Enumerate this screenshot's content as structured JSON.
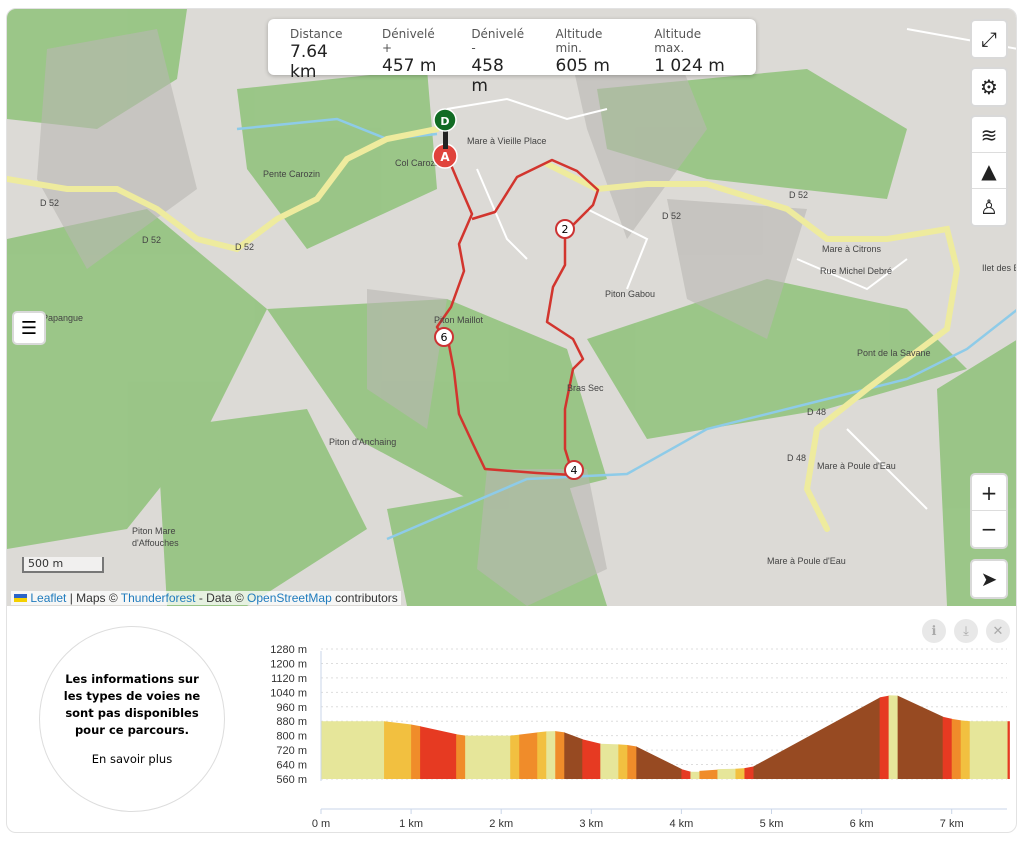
{
  "stats": [
    {
      "label": "Distance",
      "value": "7.64 km"
    },
    {
      "label": "Dénivelé +",
      "value": "457 m"
    },
    {
      "label": "Dénivelé -",
      "value": "458 m"
    },
    {
      "label": "Altitude min.",
      "value": "605 m"
    },
    {
      "label": "Altitude max.",
      "value": "1 024 m"
    }
  ],
  "map": {
    "labels": [
      "Mare à Vieille Place",
      "Col Carozin",
      "Pente Carozin",
      "Piton Maillot",
      "Piton Gabou",
      "Bras Sec",
      "Piton d'Anchaing",
      "Papangue",
      "Mare à Citrons",
      "Rue Michel Debré",
      "Pont de la Savane",
      "Ilet des Bar",
      "Mare à Poule d'Eau",
      "Mare à Poule d'Eau",
      "Piton Mare",
      "d'Affouches",
      "D 52",
      "D 52",
      "D 52",
      "D 52",
      "D 52",
      "D 48",
      "D 48"
    ],
    "markers": {
      "start": "D",
      "end": "A",
      "km": [
        "2",
        "4",
        "6"
      ]
    },
    "scale": "500 m",
    "attribution": {
      "leaflet": "Leaflet",
      "sep": " | Maps © ",
      "thunderforest": "Thunderforest",
      "data": " - Data © ",
      "osm": "OpenStreetMap",
      "contributors": " contributors"
    },
    "controls": [
      "fullscreen-icon",
      "gear-icon",
      "layers-icon",
      "mountain-icon",
      "person-pin-icon",
      "plus-icon",
      "minus-icon",
      "locate-icon"
    ],
    "route_color": "#d2352e"
  },
  "info": {
    "text": "Les informations sur les types de voies ne sont pas disponibles pour ce parcours.",
    "link": "En savoir plus"
  },
  "chart_data": {
    "type": "area",
    "xlabel": "",
    "ylabel": "",
    "y_ticks": [
      "1280 m",
      "1200 m",
      "1120 m",
      "1040 m",
      "960 m",
      "880 m",
      "800 m",
      "720 m",
      "640 m",
      "560 m"
    ],
    "x_ticks": [
      "0 m",
      "1 km",
      "2 km",
      "3 km",
      "4 km",
      "5 km",
      "6 km",
      "7 km"
    ],
    "ylim": [
      560,
      1280
    ],
    "xlim": [
      0,
      7.64
    ],
    "colors": {
      "light": "#e6e69a",
      "yellow": "#f2c040",
      "orange": "#f08c2a",
      "red": "#e63a22",
      "brown": "#974a22"
    },
    "segments": [
      [
        0,
        0.7,
        880,
        880,
        "light"
      ],
      [
        0.7,
        1.0,
        880,
        862,
        "yellow"
      ],
      [
        1.0,
        1.1,
        862,
        852,
        "orange"
      ],
      [
        1.1,
        1.5,
        852,
        808,
        "red"
      ],
      [
        1.5,
        1.6,
        808,
        800,
        "orange"
      ],
      [
        1.6,
        2.1,
        800,
        800,
        "light"
      ],
      [
        2.1,
        2.2,
        800,
        806,
        "yellow"
      ],
      [
        2.2,
        2.4,
        806,
        818,
        "orange"
      ],
      [
        2.4,
        2.5,
        818,
        824,
        "yellow"
      ],
      [
        2.5,
        2.6,
        824,
        825,
        "light"
      ],
      [
        2.6,
        2.7,
        825,
        818,
        "orange"
      ],
      [
        2.7,
        2.9,
        818,
        780,
        "brown"
      ],
      [
        2.9,
        3.1,
        780,
        755,
        "red"
      ],
      [
        3.1,
        3.3,
        755,
        752,
        "light"
      ],
      [
        3.3,
        3.4,
        752,
        748,
        "yellow"
      ],
      [
        3.4,
        3.5,
        748,
        740,
        "orange"
      ],
      [
        3.5,
        4.0,
        740,
        615,
        "brown"
      ],
      [
        4.0,
        4.1,
        615,
        600,
        "red"
      ],
      [
        4.1,
        4.2,
        600,
        600,
        "light"
      ],
      [
        4.2,
        4.4,
        605,
        612,
        "orange"
      ],
      [
        4.4,
        4.6,
        615,
        617,
        "light"
      ],
      [
        4.6,
        4.7,
        617,
        620,
        "yellow"
      ],
      [
        4.7,
        4.8,
        620,
        630,
        "red"
      ],
      [
        4.8,
        6.2,
        630,
        1012,
        "brown"
      ],
      [
        6.2,
        6.3,
        1012,
        1022,
        "red"
      ],
      [
        6.3,
        6.4,
        1024,
        1022,
        "light"
      ],
      [
        6.4,
        6.9,
        1022,
        905,
        "brown"
      ],
      [
        6.9,
        7.0,
        905,
        893,
        "red"
      ],
      [
        7.0,
        7.1,
        893,
        885,
        "orange"
      ],
      [
        7.1,
        7.2,
        885,
        880,
        "yellow"
      ],
      [
        7.2,
        7.62,
        880,
        880,
        "light"
      ],
      [
        7.62,
        7.64,
        880,
        880,
        "red"
      ]
    ]
  }
}
